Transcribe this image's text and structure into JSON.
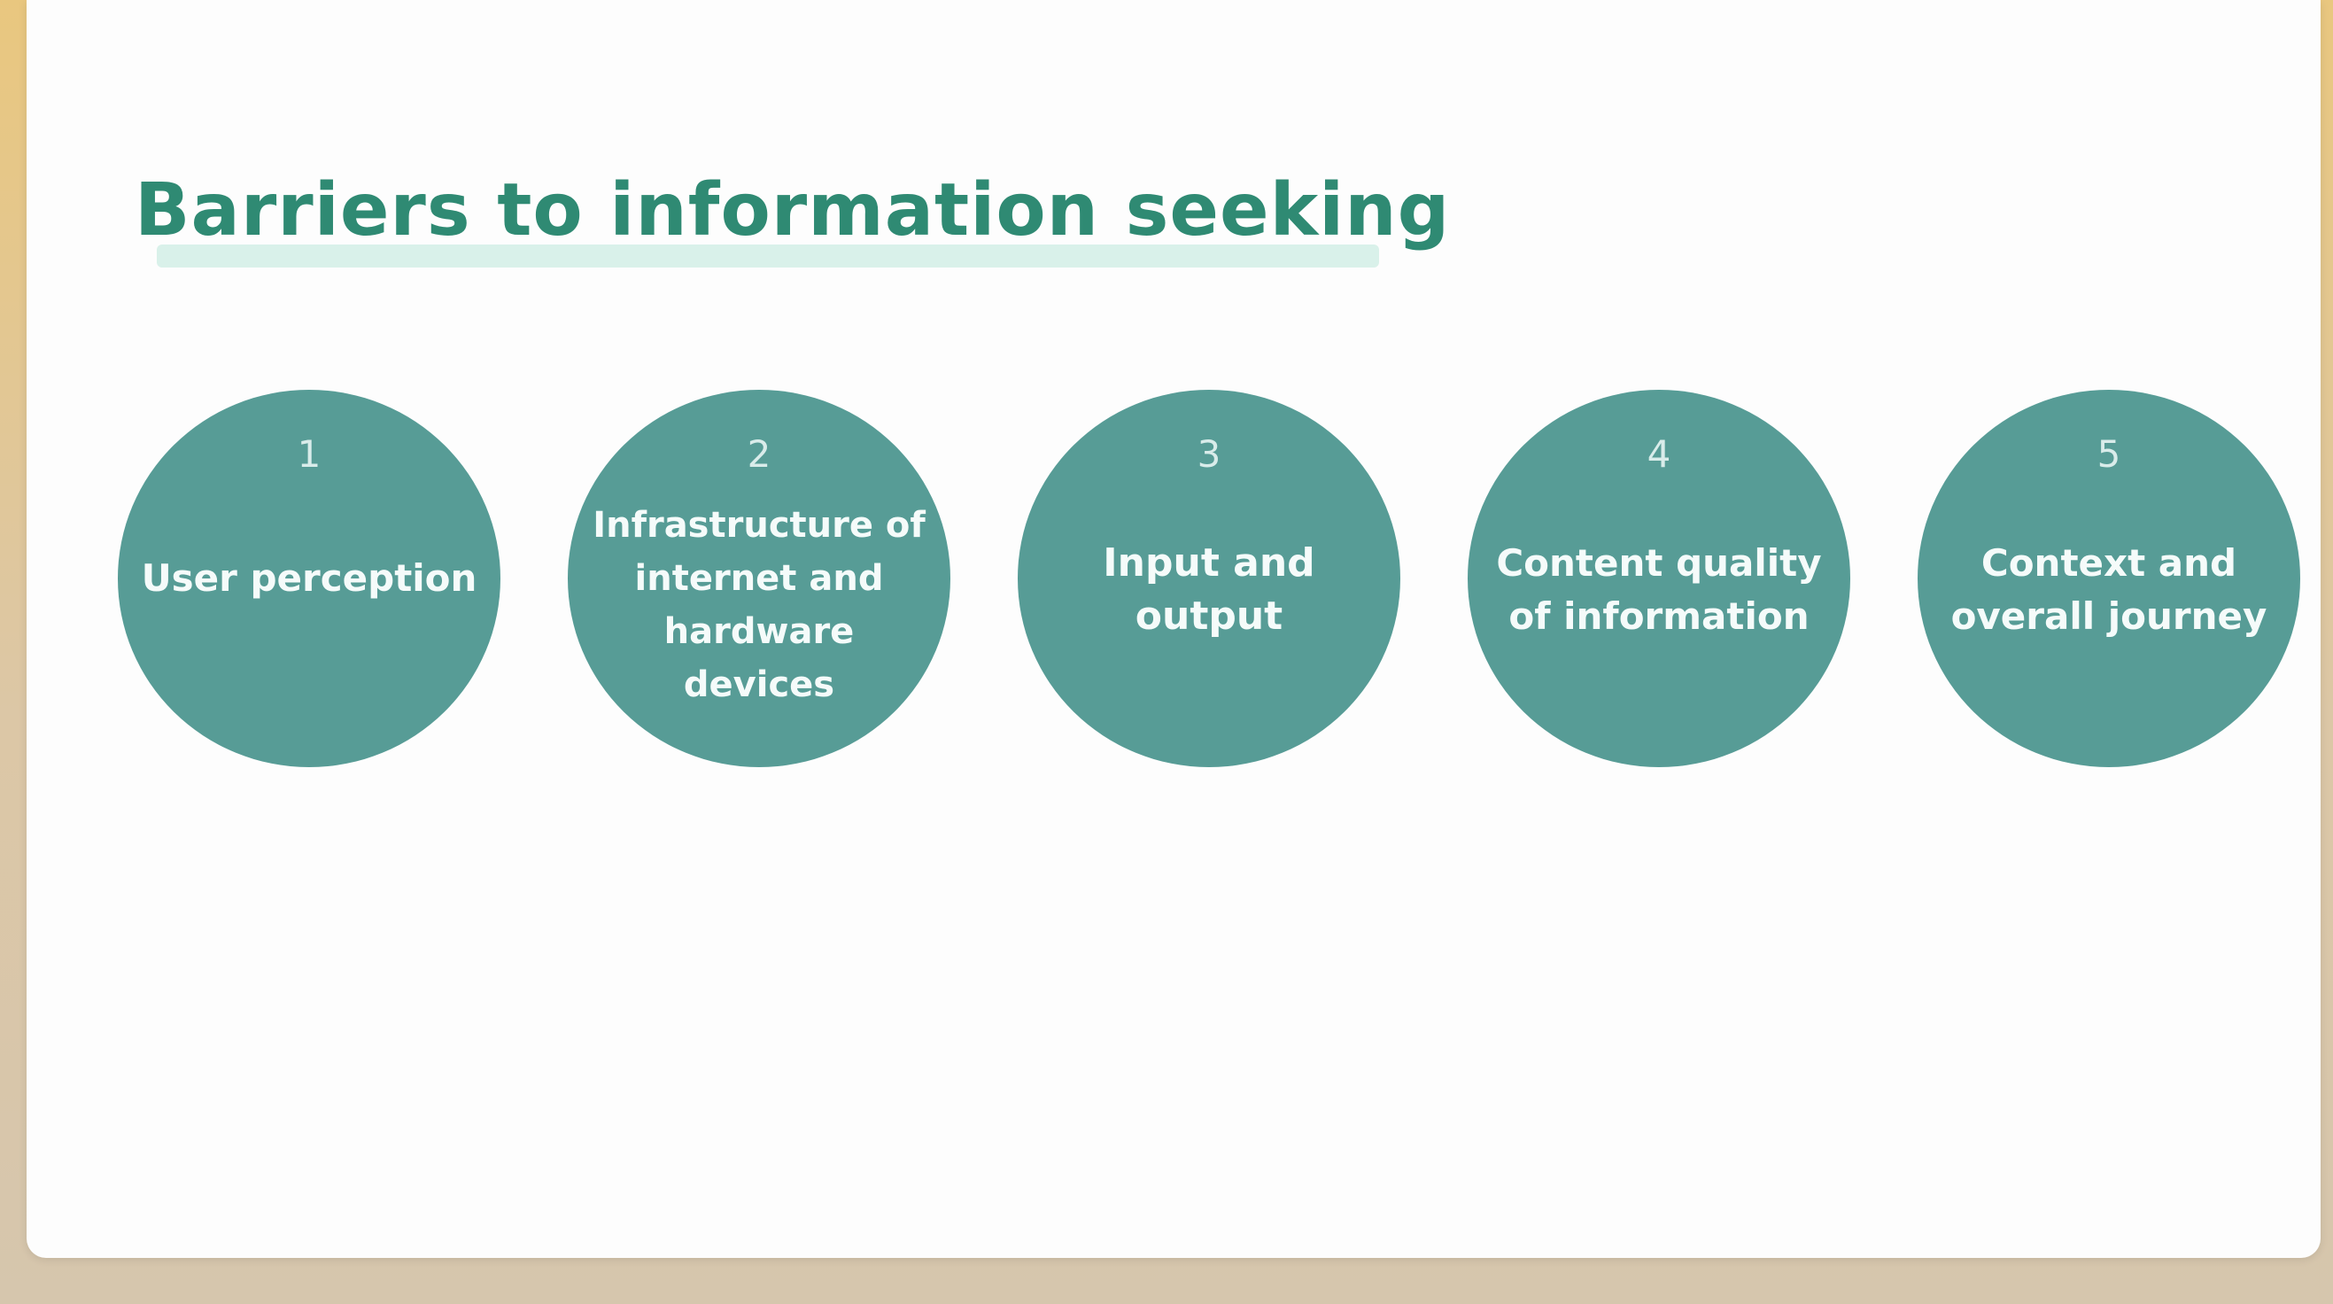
{
  "slide": {
    "title": "Barriers to information seeking",
    "colors": {
      "title": "#2f8a73",
      "circle": "#579c96",
      "highlight": "#d9f1ea",
      "frame": "#e9c77f"
    }
  },
  "barriers": [
    {
      "number": "1",
      "label": "User perception"
    },
    {
      "number": "2",
      "label": "Infrastructure of internet and hardware devices"
    },
    {
      "number": "3",
      "label": "Input and output"
    },
    {
      "number": "4",
      "label": "Content quality of information"
    },
    {
      "number": "5",
      "label": "Context and overall journey"
    }
  ]
}
